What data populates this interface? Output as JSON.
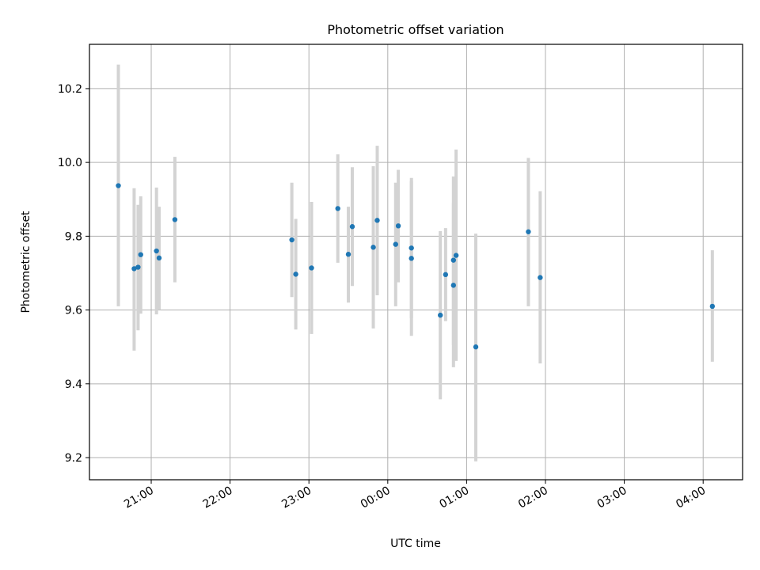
{
  "chart_data": {
    "type": "scatter",
    "title": "Photometric offset variation",
    "xlabel": "UTC time",
    "ylabel": "Photometric offset",
    "x_ticks": [
      "21:00",
      "22:00",
      "23:00",
      "00:00",
      "01:00",
      "02:00",
      "03:00",
      "04:00"
    ],
    "y_ticks": [
      "9.2",
      "9.4",
      "9.6",
      "9.8",
      "10.0",
      "10.2"
    ],
    "xlim": [
      "20:13",
      "04:30"
    ],
    "ylim": [
      9.14,
      10.32
    ],
    "grid": true,
    "colors": {
      "point": "#1f77b4",
      "errorbar": "#d3d3d3"
    },
    "series": [
      {
        "points": [
          {
            "t": "20:35",
            "y": 9.937,
            "lo": 9.61,
            "hi": 10.265
          },
          {
            "t": "20:47",
            "y": 9.712,
            "lo": 9.49,
            "hi": 9.93
          },
          {
            "t": "20:50",
            "y": 9.716,
            "lo": 9.545,
            "hi": 9.885
          },
          {
            "t": "20:52",
            "y": 9.75,
            "lo": 9.59,
            "hi": 9.908
          },
          {
            "t": "21:04",
            "y": 9.76,
            "lo": 9.588,
            "hi": 9.932
          },
          {
            "t": "21:06",
            "y": 9.741,
            "lo": 9.6,
            "hi": 9.88
          },
          {
            "t": "21:18",
            "y": 9.845,
            "lo": 9.675,
            "hi": 10.015
          },
          {
            "t": "22:47",
            "y": 9.79,
            "lo": 9.635,
            "hi": 9.945
          },
          {
            "t": "22:50",
            "y": 9.697,
            "lo": 9.547,
            "hi": 9.847
          },
          {
            "t": "23:02",
            "y": 9.714,
            "lo": 9.535,
            "hi": 9.893
          },
          {
            "t": "23:22",
            "y": 9.875,
            "lo": 9.728,
            "hi": 10.022
          },
          {
            "t": "23:30",
            "y": 9.751,
            "lo": 9.62,
            "hi": 9.88
          },
          {
            "t": "23:33",
            "y": 9.826,
            "lo": 9.665,
            "hi": 9.987
          },
          {
            "t": "23:49",
            "y": 9.77,
            "lo": 9.55,
            "hi": 9.99
          },
          {
            "t": "23:52",
            "y": 9.843,
            "lo": 9.64,
            "hi": 10.045
          },
          {
            "t": "00:06",
            "y": 9.778,
            "lo": 9.61,
            "hi": 9.945
          },
          {
            "t": "00:08",
            "y": 9.828,
            "lo": 9.675,
            "hi": 9.98
          },
          {
            "t": "00:18",
            "y": 9.768,
            "lo": 9.578,
            "hi": 9.958
          },
          {
            "t": "00:18",
            "y": 9.74,
            "lo": 9.53,
            "hi": 9.95
          },
          {
            "t": "00:40",
            "y": 9.586,
            "lo": 9.358,
            "hi": 9.814
          },
          {
            "t": "00:44",
            "y": 9.696,
            "lo": 9.57,
            "hi": 9.822
          },
          {
            "t": "00:50",
            "y": 9.735,
            "lo": 9.505,
            "hi": 9.962
          },
          {
            "t": "00:50",
            "y": 9.667,
            "lo": 9.445,
            "hi": 9.89
          },
          {
            "t": "00:52",
            "y": 9.748,
            "lo": 9.462,
            "hi": 10.035
          },
          {
            "t": "01:07",
            "y": 9.5,
            "lo": 9.19,
            "hi": 9.807
          },
          {
            "t": "01:47",
            "y": 9.812,
            "lo": 9.61,
            "hi": 10.012
          },
          {
            "t": "01:56",
            "y": 9.688,
            "lo": 9.455,
            "hi": 9.922
          },
          {
            "t": "04:07",
            "y": 9.61,
            "lo": 9.46,
            "hi": 9.762
          }
        ]
      }
    ]
  }
}
